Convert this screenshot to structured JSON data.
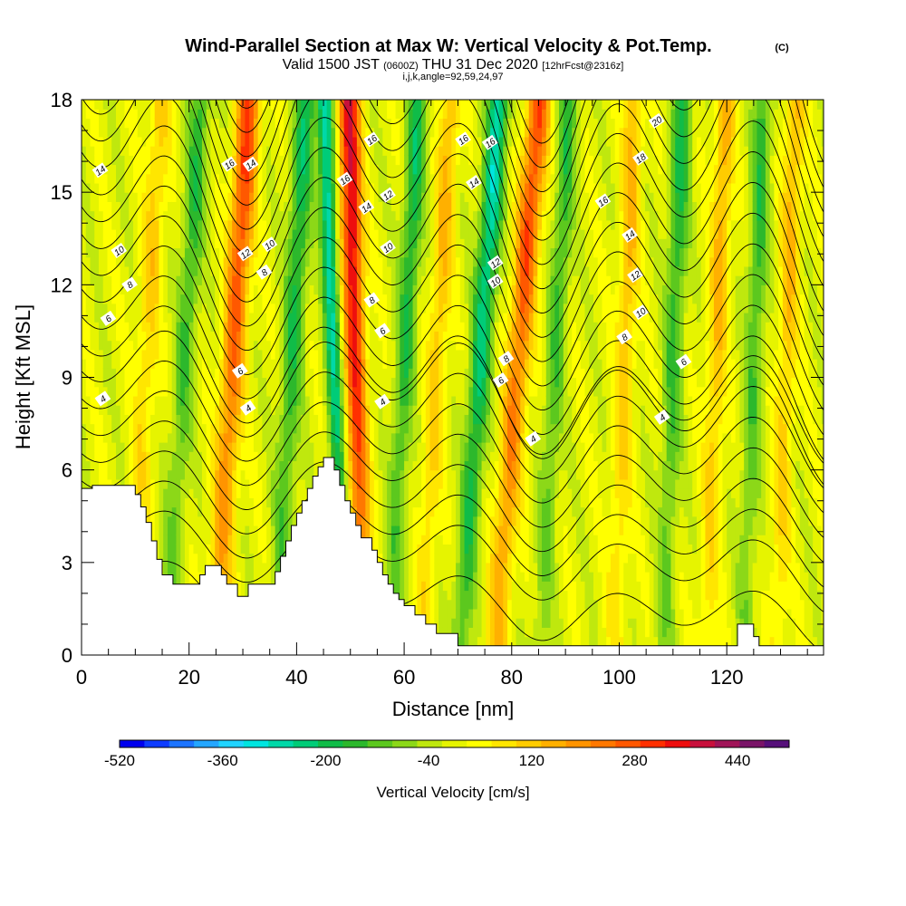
{
  "header": {
    "title": "Wind-Parallel Section at Max W: Vertical Velocity & Pot.Temp.",
    "title_mark": "(C)",
    "subtitle_main_a": "Valid 1500 JST",
    "subtitle_small_a": "(0600Z)",
    "subtitle_main_b": "THU 31 Dec 2020",
    "subtitle_small_b": "[12hrFcst@2316z]",
    "params": "i,j,k,angle=92,59,24,97"
  },
  "chart_data": {
    "type": "heatmap",
    "xlabel": "Distance [nm]",
    "ylabel": "Height [Kft MSL]",
    "xlim": [
      0,
      138
    ],
    "ylim": [
      0,
      18
    ],
    "x_ticks": [
      0,
      20,
      40,
      60,
      80,
      100,
      120
    ],
    "y_ticks": [
      0,
      3,
      6,
      9,
      12,
      15,
      18
    ],
    "grid": false,
    "colorbar": {
      "label": "Vertical Velocity [cm/s]",
      "range": [
        -520,
        520
      ],
      "step": 40,
      "tick_labels": [
        "-520",
        "-360",
        "-200",
        "-40",
        "120",
        "280",
        "440"
      ],
      "colors": [
        "#0000ee",
        "#0e3cff",
        "#1c74ff",
        "#24a6ff",
        "#20d4ff",
        "#00e5e0",
        "#00d8a8",
        "#00cc78",
        "#10bc48",
        "#2cb82c",
        "#5cc81e",
        "#8cd818",
        "#bfe80e",
        "#e6f400",
        "#ffff00",
        "#ffe600",
        "#ffcc00",
        "#ffb000",
        "#ff9400",
        "#ff7800",
        "#ff5800",
        "#ff3000",
        "#ee0e0e",
        "#c8103c",
        "#a01458",
        "#7a1468",
        "#56107a"
      ]
    },
    "terrain": [
      [
        0,
        5.4
      ],
      [
        2,
        5.4
      ],
      [
        2,
        5.5
      ],
      [
        10,
        5.5
      ],
      [
        10,
        5.2
      ],
      [
        11,
        5.2
      ],
      [
        11,
        4.8
      ],
      [
        12,
        4.8
      ],
      [
        12,
        4.3
      ],
      [
        13,
        4.3
      ],
      [
        13,
        3.7
      ],
      [
        14,
        3.7
      ],
      [
        14,
        3.1
      ],
      [
        15,
        3.1
      ],
      [
        15,
        2.6
      ],
      [
        17,
        2.6
      ],
      [
        17,
        2.3
      ],
      [
        22,
        2.3
      ],
      [
        22,
        2.6
      ],
      [
        23,
        2.6
      ],
      [
        23,
        2.9
      ],
      [
        26,
        2.9
      ],
      [
        26,
        2.6
      ],
      [
        27,
        2.6
      ],
      [
        27,
        2.3
      ],
      [
        29,
        2.3
      ],
      [
        29,
        1.9
      ],
      [
        31,
        1.9
      ],
      [
        31,
        2.3
      ],
      [
        36,
        2.3
      ],
      [
        36,
        2.7
      ],
      [
        37,
        2.7
      ],
      [
        37,
        3.2
      ],
      [
        38,
        3.2
      ],
      [
        38,
        3.7
      ],
      [
        39,
        3.7
      ],
      [
        39,
        4.2
      ],
      [
        40,
        4.2
      ],
      [
        40,
        4.6
      ],
      [
        41,
        4.6
      ],
      [
        41,
        5.0
      ],
      [
        42,
        5.0
      ],
      [
        42,
        5.4
      ],
      [
        43,
        5.4
      ],
      [
        43,
        5.8
      ],
      [
        44,
        5.8
      ],
      [
        44,
        6.1
      ],
      [
        45,
        6.1
      ],
      [
        45,
        6.4
      ],
      [
        47,
        6.4
      ],
      [
        47,
        6.0
      ],
      [
        48,
        6.0
      ],
      [
        48,
        5.5
      ],
      [
        49,
        5.5
      ],
      [
        49,
        5.0
      ],
      [
        50,
        5.0
      ],
      [
        50,
        4.6
      ],
      [
        51,
        4.6
      ],
      [
        51,
        4.2
      ],
      [
        52,
        4.2
      ],
      [
        52,
        3.8
      ],
      [
        54,
        3.8
      ],
      [
        54,
        3.4
      ],
      [
        55,
        3.4
      ],
      [
        55,
        3.0
      ],
      [
        56,
        3.0
      ],
      [
        56,
        2.6
      ],
      [
        57,
        2.6
      ],
      [
        57,
        2.3
      ],
      [
        58,
        2.3
      ],
      [
        58,
        2.0
      ],
      [
        59,
        2.0
      ],
      [
        59,
        1.8
      ],
      [
        60,
        1.8
      ],
      [
        60,
        1.6
      ],
      [
        62,
        1.6
      ],
      [
        62,
        1.3
      ],
      [
        64,
        1.3
      ],
      [
        64,
        1.0
      ],
      [
        66,
        1.0
      ],
      [
        66,
        0.7
      ],
      [
        70,
        0.7
      ],
      [
        70,
        0.3
      ],
      [
        122,
        0.3
      ],
      [
        122,
        1.0
      ],
      [
        125,
        1.0
      ],
      [
        125,
        0.6
      ],
      [
        126,
        0.6
      ],
      [
        126,
        0.3
      ],
      [
        138,
        0.3
      ]
    ],
    "updrafts": [
      {
        "x": 28,
        "w": 300,
        "tilt": -0.35,
        "width": 2.2
      },
      {
        "x": 51,
        "w": 400,
        "tilt": 0.15,
        "width": 2.0
      },
      {
        "x": 81,
        "w": 300,
        "tilt": -0.45,
        "width": 2.2
      },
      {
        "x": 12,
        "w": 120,
        "tilt": -0.3,
        "width": 2.0
      },
      {
        "x": 66,
        "w": 150,
        "tilt": -0.3,
        "width": 1.8
      },
      {
        "x": 101,
        "w": 150,
        "tilt": -0.2,
        "width": 1.8
      },
      {
        "x": 118,
        "w": 160,
        "tilt": -0.2,
        "width": 1.8
      },
      {
        "x": 131,
        "w": 150,
        "tilt": -0.2,
        "width": 1.8
      }
    ],
    "downdrafts": [
      {
        "x": 19,
        "w": -160,
        "tilt": -0.35,
        "width": 2.0
      },
      {
        "x": 39,
        "w": -200,
        "tilt": -0.3,
        "width": 2.0
      },
      {
        "x": 47,
        "w": -300,
        "tilt": 0.2,
        "width": 1.5
      },
      {
        "x": 60,
        "w": -200,
        "tilt": -0.3,
        "width": 1.8
      },
      {
        "x": 74,
        "w": -280,
        "tilt": -0.4,
        "width": 2.0
      },
      {
        "x": 88,
        "w": -160,
        "tilt": -0.3,
        "width": 1.8
      },
      {
        "x": 110,
        "w": -180,
        "tilt": -0.2,
        "width": 1.8
      },
      {
        "x": 125,
        "w": -160,
        "tilt": -0.2,
        "width": 1.8
      }
    ],
    "theta_levels": [
      "4",
      "6",
      "8",
      "10",
      "12",
      "14",
      "16",
      "18",
      "20"
    ],
    "contour_labels": [
      {
        "text": "14",
        "x": 3.5,
        "y": 15.7
      },
      {
        "text": "10",
        "x": 7,
        "y": 13.1
      },
      {
        "text": "8",
        "x": 9,
        "y": 12.0
      },
      {
        "text": "6",
        "x": 5,
        "y": 10.9
      },
      {
        "text": "4",
        "x": 4,
        "y": 8.3
      },
      {
        "text": "16",
        "x": 27.5,
        "y": 15.9
      },
      {
        "text": "14",
        "x": 31.5,
        "y": 15.9
      },
      {
        "text": "12",
        "x": 30.5,
        "y": 13.0
      },
      {
        "text": "10",
        "x": 35,
        "y": 13.3
      },
      {
        "text": "8",
        "x": 34,
        "y": 12.4
      },
      {
        "text": "6",
        "x": 29.5,
        "y": 9.2
      },
      {
        "text": "4",
        "x": 31,
        "y": 8.0
      },
      {
        "text": "16",
        "x": 49,
        "y": 15.4
      },
      {
        "text": "16",
        "x": 54,
        "y": 16.7
      },
      {
        "text": "14",
        "x": 53,
        "y": 14.5
      },
      {
        "text": "12",
        "x": 57,
        "y": 14.9
      },
      {
        "text": "10",
        "x": 57,
        "y": 13.2
      },
      {
        "text": "8",
        "x": 54,
        "y": 11.5
      },
      {
        "text": "6",
        "x": 56,
        "y": 10.5
      },
      {
        "text": "4",
        "x": 56,
        "y": 8.2
      },
      {
        "text": "16",
        "x": 71,
        "y": 16.7
      },
      {
        "text": "16",
        "x": 76,
        "y": 16.6
      },
      {
        "text": "14",
        "x": 73,
        "y": 15.3
      },
      {
        "text": "12",
        "x": 77,
        "y": 12.7
      },
      {
        "text": "10",
        "x": 77,
        "y": 12.1
      },
      {
        "text": "8",
        "x": 79,
        "y": 9.6
      },
      {
        "text": "6",
        "x": 78,
        "y": 8.9
      },
      {
        "text": "4",
        "x": 84,
        "y": 7.0
      },
      {
        "text": "20",
        "x": 107,
        "y": 17.3
      },
      {
        "text": "18",
        "x": 104,
        "y": 16.1
      },
      {
        "text": "16",
        "x": 97,
        "y": 14.7
      },
      {
        "text": "14",
        "x": 102,
        "y": 13.6
      },
      {
        "text": "12",
        "x": 103,
        "y": 12.3
      },
      {
        "text": "10",
        "x": 104,
        "y": 11.1
      },
      {
        "text": "8",
        "x": 101,
        "y": 10.3
      },
      {
        "text": "6",
        "x": 112,
        "y": 9.5
      },
      {
        "text": "4",
        "x": 108,
        "y": 7.7
      }
    ]
  }
}
